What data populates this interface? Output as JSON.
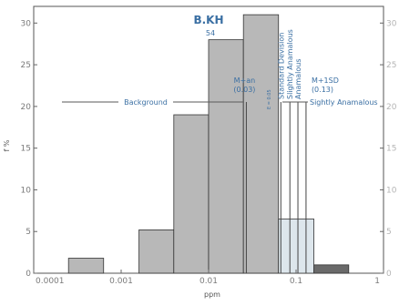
{
  "chart_data": {
    "type": "bar",
    "title": "B.KH",
    "subtitle": "54",
    "xlabel": "ppm",
    "ylabel": "f %",
    "x_scale": "log",
    "xlim": [
      0.0001,
      1
    ],
    "ylim": [
      0,
      32
    ],
    "x_ticks": [
      "0.0001",
      "0.001",
      "0.01",
      "0.1",
      "1"
    ],
    "y_ticks": [
      "0",
      "5",
      "10",
      "15",
      "20",
      "25",
      "30"
    ],
    "y_ticks_right": [
      "0",
      "5",
      "10",
      "15",
      "20",
      "25",
      "30"
    ],
    "bins": [
      {
        "lo": 0.00025,
        "hi": 0.00063,
        "value": 1.8,
        "color": "#b8b8b8"
      },
      {
        "lo": 0.0016,
        "hi": 0.004,
        "value": 5.2,
        "color": "#b8b8b8"
      },
      {
        "lo": 0.004,
        "hi": 0.01,
        "value": 19,
        "color": "#b8b8b8"
      },
      {
        "lo": 0.01,
        "hi": 0.025,
        "value": 28,
        "color": "#b8b8b8"
      },
      {
        "lo": 0.025,
        "hi": 0.063,
        "value": 31,
        "color": "#b8b8b8"
      },
      {
        "lo": 0.063,
        "hi": 0.16,
        "value": 6.5,
        "color": "#dde6ec"
      },
      {
        "lo": 0.16,
        "hi": 0.4,
        "value": 1,
        "color": "#6a6a6a"
      }
    ],
    "thresholds": [
      {
        "x": 0.027,
        "label": "M+an",
        "value_label": "(0.03)"
      },
      {
        "x": 0.067,
        "label": "Standard Devision"
      },
      {
        "x": 0.085,
        "label": "Slightly Anamalous"
      },
      {
        "x": 0.105,
        "label": "Anamalous"
      },
      {
        "x": 0.13,
        "label": "M+1SD",
        "value_label": "(0.13)"
      }
    ],
    "annotations": {
      "background": "Background",
      "slightly_anamalous": "Sightly Anamalous",
      "faint_label": "E = 0.05"
    }
  }
}
